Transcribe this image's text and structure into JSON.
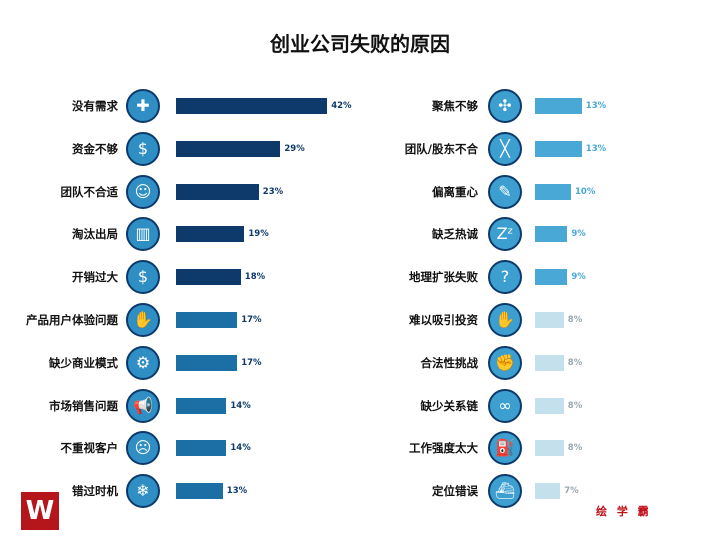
{
  "chart_data": [
    {
      "type": "bar",
      "title": "创业公司失败的原因",
      "orientation": "horizontal",
      "unit": "%",
      "categories": [
        "没有需求",
        "资金不够",
        "团队不合适",
        "淘汰出局",
        "开销过大",
        "产品用户体验问题",
        "缺少商业模式",
        "市场销售问题",
        "不重视客户",
        "错过时机"
      ],
      "values": [
        42,
        29,
        23,
        19,
        18,
        17,
        17,
        14,
        14,
        13
      ],
      "icons": [
        "puzzle-icon",
        "money-bag-icon",
        "team-icon",
        "podium-icon",
        "coins-icon",
        "thumbs-down-icon",
        "wheel-icon",
        "megaphone-icon",
        "monkey-icon",
        "snowflake-icon"
      ],
      "colors": [
        "#0d3a6b",
        "#0d3a6b",
        "#0d3a6b",
        "#0d3a6b",
        "#0d3a6b",
        "#1b6fa5",
        "#1b6fa5",
        "#1b6fa5",
        "#1b6fa5",
        "#1b6fa5"
      ]
    },
    {
      "type": "bar",
      "orientation": "horizontal",
      "unit": "%",
      "categories": [
        "聚焦不够",
        "团队/股东不合",
        "偏离重心",
        "缺乏热诚",
        "地理扩张失败",
        "难以吸引投资",
        "合法性挑战",
        "缺少关系链",
        "工作强度太大",
        "定位错误"
      ],
      "values": [
        13,
        13,
        10,
        9,
        9,
        8,
        8,
        8,
        8,
        7
      ],
      "icons": [
        "arrows-icon",
        "oars-icon",
        "pencil-icon",
        "sleep-icon",
        "location-icon",
        "handshake-icon",
        "fist-icon",
        "chain-icon",
        "gas-pump-icon",
        "ship-icon"
      ],
      "colors": [
        "#4aa8d6",
        "#4aa8d6",
        "#4aa8d6",
        "#4aa8d6",
        "#4aa8d6",
        "#c3e0ec",
        "#c3e0ec",
        "#c3e0ec",
        "#c3e0ec",
        "#c3e0ec"
      ]
    }
  ],
  "brand": "绘 学 霸",
  "logo_text": "W"
}
